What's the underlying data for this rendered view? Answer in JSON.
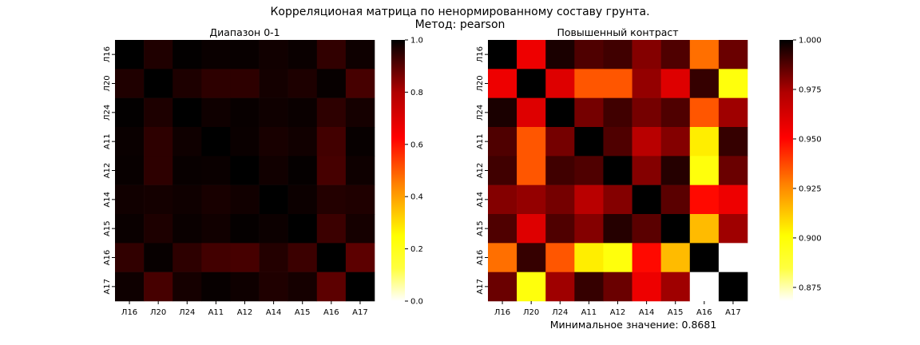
{
  "suptitle": "Корреляционая матрица по ненормированному составу грунта.",
  "subtitle": "Метод: pearson",
  "footer": "Минимальное значение: 0.8681",
  "chart_data": [
    {
      "type": "heatmap",
      "title": "Диапазон 0-1",
      "colormap": "hot_r",
      "vmin": 0.0,
      "vmax": 1.0,
      "colorbar_ticks": [
        "0.0",
        "0.2",
        "0.4",
        "0.6",
        "0.8",
        "1.0"
      ],
      "colorbar_tick_values": [
        0.0,
        0.2,
        0.4,
        0.6,
        0.8,
        1.0
      ],
      "labels": [
        "Л16",
        "Л20",
        "Л24",
        "А11",
        "А12",
        "А14",
        "А15",
        "А16",
        "А17"
      ],
      "shares_values_with": "Повышенный контраст"
    },
    {
      "type": "heatmap",
      "title": "Повышенный контраст",
      "colormap": "hot_r",
      "vmin": 0.8681,
      "vmax": 1.0,
      "colorbar_ticks": [
        "0.875",
        "0.900",
        "0.925",
        "0.950",
        "0.975",
        "1.000"
      ],
      "colorbar_tick_values": [
        0.875,
        0.9,
        0.925,
        0.95,
        0.975,
        1.0
      ],
      "labels": [
        "Л16",
        "Л20",
        "Л24",
        "А11",
        "А12",
        "А14",
        "А15",
        "А16",
        "А17"
      ],
      "matrix": [
        [
          1.0,
          0.955,
          0.995,
          0.985,
          0.988,
          0.975,
          0.985,
          0.93,
          0.98
        ],
        [
          0.955,
          1.0,
          0.958,
          0.935,
          0.935,
          0.972,
          0.958,
          0.99,
          0.9
        ],
        [
          0.995,
          0.958,
          1.0,
          0.978,
          0.988,
          0.978,
          0.985,
          0.935,
          0.97
        ],
        [
          0.985,
          0.935,
          0.978,
          1.0,
          0.985,
          0.965,
          0.975,
          0.905,
          0.99
        ],
        [
          0.988,
          0.935,
          0.988,
          0.985,
          1.0,
          0.975,
          0.993,
          0.9,
          0.98
        ],
        [
          0.975,
          0.972,
          0.978,
          0.965,
          0.975,
          1.0,
          0.983,
          0.95,
          0.955
        ],
        [
          0.985,
          0.958,
          0.985,
          0.975,
          0.993,
          0.983,
          1.0,
          0.915,
          0.97
        ],
        [
          0.93,
          0.99,
          0.935,
          0.905,
          0.9,
          0.95,
          0.915,
          1.0,
          0.868
        ],
        [
          0.98,
          0.9,
          0.97,
          0.99,
          0.98,
          0.955,
          0.97,
          0.868,
          1.0
        ]
      ]
    }
  ]
}
